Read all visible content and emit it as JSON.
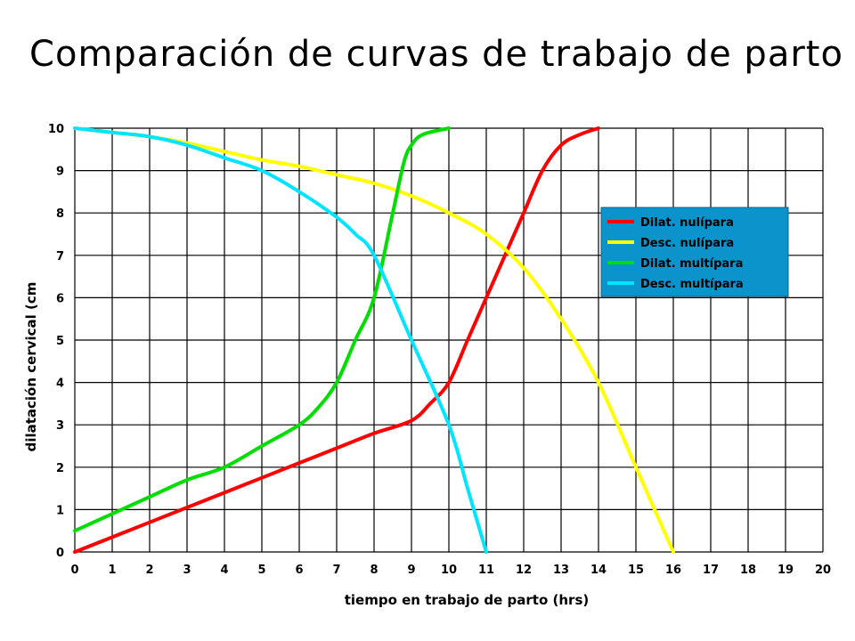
{
  "slide": {
    "title": "Comparación de curvas de trabajo de parto"
  },
  "chart_data": {
    "type": "line",
    "xlabel": "tiempo en trabajo de parto (hrs)",
    "ylabel": "dilatación cervical (cm",
    "xlim": [
      0,
      20
    ],
    "ylim": [
      0,
      10
    ],
    "x_ticks": [
      "0",
      "1",
      "2",
      "3",
      "4",
      "5",
      "6",
      "7",
      "8",
      "9",
      "10",
      "11",
      "12",
      "13",
      "14",
      "15",
      "16",
      "17",
      "18",
      "19",
      "20"
    ],
    "y_ticks": [
      "0",
      "1",
      "2",
      "3",
      "4",
      "5",
      "6",
      "7",
      "8",
      "9",
      "10"
    ],
    "grid": true,
    "legend_position": "right",
    "legend_background": "#0b93cc",
    "series": [
      {
        "name": "Dilat. nulípara",
        "color": "#ff0000",
        "points": [
          [
            0,
            0
          ],
          [
            1,
            0.35
          ],
          [
            2,
            0.7
          ],
          [
            3,
            1.05
          ],
          [
            4,
            1.4
          ],
          [
            5,
            1.75
          ],
          [
            6,
            2.1
          ],
          [
            7,
            2.45
          ],
          [
            8,
            2.8
          ],
          [
            9,
            3.1
          ],
          [
            9.5,
            3.5
          ],
          [
            10,
            4
          ],
          [
            10.5,
            5
          ],
          [
            11,
            6
          ],
          [
            11.5,
            7
          ],
          [
            12,
            8
          ],
          [
            12.5,
            9
          ],
          [
            13,
            9.6
          ],
          [
            13.5,
            9.85
          ],
          [
            14,
            10
          ]
        ]
      },
      {
        "name": "Desc. nulípara",
        "color": "#ffff00",
        "points": [
          [
            0,
            10
          ],
          [
            1,
            9.9
          ],
          [
            2,
            9.8
          ],
          [
            3,
            9.65
          ],
          [
            4,
            9.45
          ],
          [
            5,
            9.25
          ],
          [
            6,
            9.1
          ],
          [
            7,
            8.9
          ],
          [
            8,
            8.7
          ],
          [
            9,
            8.4
          ],
          [
            10,
            8
          ],
          [
            11,
            7.5
          ],
          [
            12,
            6.7
          ],
          [
            13,
            5.5
          ],
          [
            14,
            4
          ],
          [
            15,
            2
          ],
          [
            16,
            0
          ]
        ]
      },
      {
        "name": "Dilat. multípara",
        "color": "#00dd00",
        "points": [
          [
            0,
            0.5
          ],
          [
            1,
            0.9
          ],
          [
            2,
            1.3
          ],
          [
            3,
            1.7
          ],
          [
            4,
            2
          ],
          [
            5,
            2.5
          ],
          [
            6,
            3
          ],
          [
            6.5,
            3.4
          ],
          [
            7,
            4
          ],
          [
            7.5,
            5
          ],
          [
            8,
            6
          ],
          [
            8.5,
            8
          ],
          [
            8.8,
            9.2
          ],
          [
            9,
            9.6
          ],
          [
            9.3,
            9.85
          ],
          [
            10,
            10
          ]
        ]
      },
      {
        "name": "Desc. multípara",
        "color": "#00e5ff",
        "points": [
          [
            0,
            10
          ],
          [
            1,
            9.9
          ],
          [
            2,
            9.8
          ],
          [
            3,
            9.6
          ],
          [
            4,
            9.3
          ],
          [
            5,
            9
          ],
          [
            6,
            8.5
          ],
          [
            7,
            7.9
          ],
          [
            7.5,
            7.5
          ],
          [
            8,
            7
          ],
          [
            9,
            5
          ],
          [
            10,
            3
          ],
          [
            10.5,
            1.5
          ],
          [
            11,
            0
          ]
        ]
      }
    ]
  }
}
